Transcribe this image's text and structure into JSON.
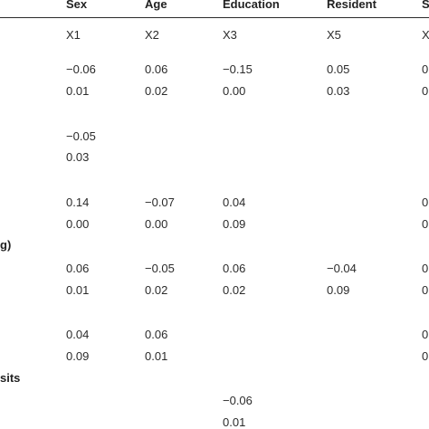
{
  "header": {
    "sex": "Sex",
    "age": "Age",
    "education": "Education",
    "resident": "Resident",
    "last": "S"
  },
  "codes": {
    "sex": "X1",
    "age": "X2",
    "education": "X3",
    "resident": "X5",
    "last": "X"
  },
  "row_labels": {
    "row4": "g)",
    "row6": "sits"
  },
  "rows": {
    "r1": {
      "sex": "−0.06",
      "age": "0.06",
      "education": "−0.15",
      "resident": "0.05",
      "last": "0"
    },
    "r1p": {
      "sex": "0.01",
      "age": "0.02",
      "education": "0.00",
      "resident": "0.03",
      "last": "0"
    },
    "r2": {
      "sex": "−0.05"
    },
    "r2p": {
      "sex": "0.03"
    },
    "r3": {
      "sex": "0.14",
      "age": "−0.07",
      "education": "0.04",
      "last": "0"
    },
    "r3p": {
      "sex": "0.00",
      "age": "0.00",
      "education": "0.09",
      "last": "0"
    },
    "r4": {
      "sex": "0.06",
      "age": "−0.05",
      "education": "0.06",
      "resident": "−0.04",
      "last": "0"
    },
    "r4p": {
      "sex": "0.01",
      "age": "0.02",
      "education": "0.02",
      "resident": "0.09",
      "last": "0"
    },
    "r5": {
      "sex": "0.04",
      "age": "0.06",
      "last": "0"
    },
    "r5p": {
      "sex": "0.09",
      "age": "0.01",
      "last": "0"
    },
    "r6": {
      "education": "−0.06"
    },
    "r6p": {
      "education": "0.01"
    }
  }
}
